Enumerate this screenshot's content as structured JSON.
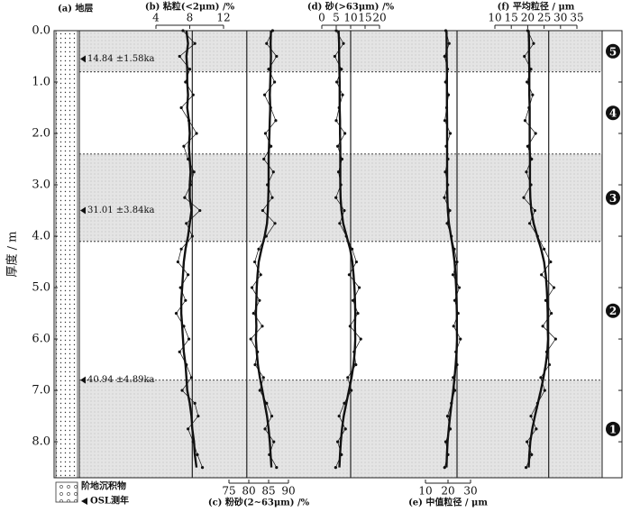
{
  "chart_data": {
    "type": "profile",
    "y_label": "厚度 / m",
    "ylim": [
      0,
      8.7
    ],
    "yticks": [
      {
        "value": 0,
        "label": "0.0"
      },
      {
        "value": 1,
        "label": "1.0"
      },
      {
        "value": 2,
        "label": "2.0"
      },
      {
        "value": 3,
        "label": "3.0"
      },
      {
        "value": 4,
        "label": "4.0"
      },
      {
        "value": 5,
        "label": "5.0"
      },
      {
        "value": 6,
        "label": "6.0"
      },
      {
        "value": 7,
        "label": "7.0"
      },
      {
        "value": 8,
        "label": "8.0"
      }
    ],
    "strat_title": "(a) 地层",
    "units": [
      {
        "label": "5",
        "top": 0,
        "bottom": 0.8,
        "shaded": true
      },
      {
        "label": "4",
        "top": 0.8,
        "bottom": 2.4,
        "shaded": false
      },
      {
        "label": "3",
        "top": 2.4,
        "bottom": 4.1,
        "shaded": true
      },
      {
        "label": "2",
        "top": 4.1,
        "bottom": 6.8,
        "shaded": false
      },
      {
        "label": "1",
        "top": 6.8,
        "bottom": 8.7,
        "shaded": true
      }
    ],
    "osl": [
      {
        "depth": 0.55,
        "label": "14.84 ±1.58ka"
      },
      {
        "depth": 3.5,
        "label": "31.01 ±3.84ka"
      },
      {
        "depth": 6.8,
        "label": "40.94 ±4.89ka"
      }
    ],
    "legend": [
      "阶地沉积物",
      "OSL测年"
    ],
    "depth": [
      0,
      0.25,
      0.5,
      0.75,
      1,
      1.25,
      1.5,
      1.75,
      2,
      2.25,
      2.5,
      2.75,
      3,
      3.25,
      3.5,
      3.75,
      4,
      4.25,
      4.5,
      4.75,
      5,
      5.25,
      5.5,
      5.75,
      6,
      6.25,
      6.5,
      6.75,
      7,
      7.25,
      7.5,
      7.75,
      8,
      8.25,
      8.5
    ],
    "color": "#111111",
    "panels": [
      {
        "title": "(b) 粘粒(<2μm) /%",
        "axis": "top",
        "xlim": [
          4,
          12
        ],
        "xticks": [
          4,
          8,
          12
        ],
        "ref": 8.3,
        "raw": [
          7.2,
          8.6,
          6.8,
          8.0,
          7.5,
          8.4,
          7.0,
          7.9,
          8.8,
          7.3,
          7.8,
          8.5,
          8.1,
          7.4,
          9.2,
          7.6,
          8.3,
          7.0,
          6.6,
          7.8,
          6.9,
          7.5,
          6.4,
          7.3,
          7.9,
          6.8,
          7.6,
          8.2,
          7.1,
          8.6,
          9.0,
          7.8,
          8.4,
          8.9,
          9.5
        ],
        "smooth": [
          7.6,
          7.8,
          7.6,
          7.7,
          7.7,
          7.8,
          7.7,
          7.9,
          8.0,
          7.9,
          8.0,
          8.1,
          8.0,
          8.0,
          8.2,
          8.0,
          7.8,
          7.5,
          7.3,
          7.2,
          7.1,
          7.0,
          7.0,
          7.1,
          7.2,
          7.3,
          7.5,
          7.6,
          7.7,
          8.0,
          8.2,
          8.3,
          8.5,
          8.6,
          8.8
        ]
      },
      {
        "title": "(c) 粉砂(2~63μm) /%",
        "axis": "bottom",
        "xlim": [
          75,
          90
        ],
        "xticks": [
          75,
          80,
          85,
          90
        ],
        "ref": 79.5,
        "raw": [
          86,
          84.5,
          87,
          85,
          86.5,
          84,
          85.5,
          86.8,
          84.2,
          85.6,
          83.8,
          86.2,
          84.7,
          85.9,
          83.5,
          86.6,
          84.4,
          82.5,
          81.5,
          83,
          80.8,
          82.7,
          81.2,
          83.4,
          80.5,
          82.2,
          81.6,
          83.7,
          82.8,
          84.5,
          85.8,
          84.1,
          86.3,
          85.2,
          87
        ],
        "smooth": [
          85.6,
          85.5,
          85.6,
          85.5,
          85.4,
          85.3,
          85.4,
          85.3,
          85.2,
          85.1,
          85.0,
          85.0,
          85.0,
          84.9,
          84.8,
          84.6,
          84.0,
          83.2,
          82.5,
          82.2,
          82.0,
          81.9,
          81.8,
          81.9,
          81.8,
          82.0,
          82.3,
          82.8,
          83.4,
          84.0,
          84.6,
          85.0,
          85.3,
          85.5,
          85.7
        ]
      },
      {
        "title": "(d) 砂(>63μm) /%",
        "axis": "top",
        "xlim": [
          0,
          20
        ],
        "xticks": [
          0,
          5,
          10,
          15,
          20
        ],
        "ref": 10,
        "raw": [
          5,
          7.5,
          4.5,
          6.8,
          5.2,
          7.2,
          6,
          5,
          8,
          5.5,
          7,
          5.8,
          6.6,
          4.9,
          7.8,
          6.2,
          8.5,
          10.5,
          12,
          9.5,
          13,
          10.8,
          12.5,
          9.8,
          13.5,
          11.2,
          11.8,
          9,
          10.2,
          7.8,
          6,
          8.2,
          5.5,
          6.8,
          4.8
        ],
        "smooth": [
          5.8,
          6.0,
          6.0,
          6.1,
          6.2,
          6.2,
          6.2,
          6.3,
          6.3,
          6.4,
          6.4,
          6.4,
          6.4,
          6.5,
          6.8,
          7.4,
          8.6,
          9.8,
          10.6,
          11.0,
          11.3,
          11.5,
          11.6,
          11.5,
          11.6,
          11.4,
          11.0,
          10.3,
          9.4,
          8.5,
          7.6,
          7.0,
          6.6,
          6.3,
          6.1
        ]
      },
      {
        "title": "(e) 中值粒径 / μm",
        "axis": "bottom",
        "xlim": [
          10,
          30
        ],
        "xticks": [
          10,
          20,
          30
        ],
        "ref": 24,
        "raw": [
          19,
          20.5,
          18.5,
          19.8,
          18.9,
          20.2,
          19.4,
          18.6,
          21,
          19.2,
          20,
          18.8,
          19.9,
          18.4,
          20.8,
          19.6,
          21.5,
          22.8,
          24,
          22.2,
          25,
          23,
          24.5,
          22.5,
          25.5,
          23.5,
          24,
          22.3,
          23,
          21.5,
          19.8,
          21,
          19,
          20,
          18.5
        ],
        "smooth": [
          19.3,
          19.4,
          19.4,
          19.5,
          19.5,
          19.5,
          19.5,
          19.6,
          19.6,
          19.6,
          19.6,
          19.6,
          19.6,
          19.7,
          19.9,
          20.4,
          21.3,
          22.2,
          22.9,
          23.3,
          23.6,
          23.8,
          23.9,
          23.9,
          24.0,
          23.8,
          23.4,
          22.9,
          22.3,
          21.6,
          20.9,
          20.3,
          19.8,
          19.5,
          19.3
        ]
      },
      {
        "title": "(f) 平均粒径 / μm",
        "axis": "top",
        "xlim": [
          10,
          35
        ],
        "xticks": [
          10,
          15,
          20,
          25,
          30,
          35
        ],
        "ref": 26.4,
        "raw": [
          20,
          21.8,
          19,
          21,
          19.8,
          21.5,
          20.4,
          19.2,
          22.4,
          20,
          21.2,
          19.6,
          21,
          18.8,
          22.2,
          20.6,
          23,
          25,
          27,
          24.2,
          28,
          25.5,
          27.2,
          24.6,
          28.5,
          25.8,
          26.6,
          24,
          25.2,
          23,
          21,
          22.6,
          19.8,
          21.2,
          19.5
        ],
        "smooth": [
          20.3,
          20.4,
          20.4,
          20.5,
          20.5,
          20.5,
          20.6,
          20.6,
          20.6,
          20.6,
          20.7,
          20.7,
          20.7,
          20.8,
          21.1,
          21.8,
          22.9,
          24.1,
          25.0,
          25.5,
          25.8,
          26.0,
          26.1,
          26.1,
          26.2,
          26.0,
          25.5,
          24.8,
          24.0,
          23.1,
          22.2,
          21.4,
          20.8,
          20.5,
          20.3
        ]
      }
    ]
  }
}
